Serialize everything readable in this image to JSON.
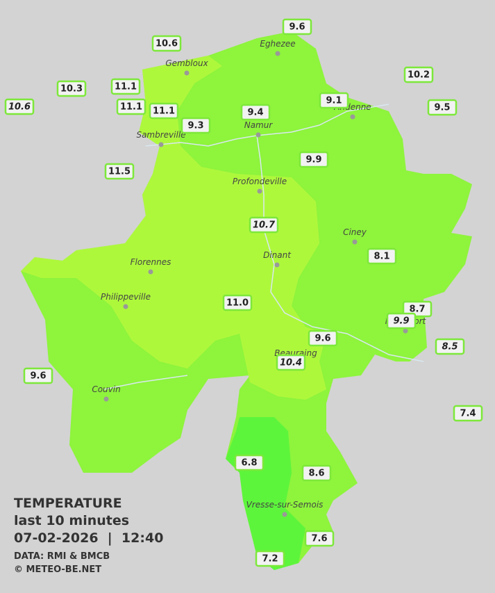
{
  "stations": [
    {
      "label": "9.6",
      "italic": false
    },
    {
      "label": "10.6",
      "italic": false
    },
    {
      "label": "10.2",
      "italic": false
    },
    {
      "label": "10.3",
      "italic": false
    },
    {
      "label": "11.1",
      "italic": false
    },
    {
      "label": "10.6",
      "italic": true
    },
    {
      "label": "11.1",
      "italic": false
    },
    {
      "label": "11.1",
      "italic": false
    },
    {
      "label": "9.4",
      "italic": false
    },
    {
      "label": "9.1",
      "italic": false
    },
    {
      "label": "9.5",
      "italic": false
    },
    {
      "label": "9.3",
      "italic": false
    },
    {
      "label": "9.9",
      "italic": false
    },
    {
      "label": "11.5",
      "italic": false
    },
    {
      "label": "10.7",
      "italic": true
    },
    {
      "label": "8.1",
      "italic": false
    },
    {
      "label": "11.0",
      "italic": false
    },
    {
      "label": "8.7",
      "italic": false
    },
    {
      "label": "9.9",
      "italic": true
    },
    {
      "label": "9.6",
      "italic": false
    },
    {
      "label": "8.5",
      "italic": true
    },
    {
      "label": "10.4",
      "italic": true
    },
    {
      "label": "9.6",
      "italic": false
    },
    {
      "label": "7.4",
      "italic": false
    },
    {
      "label": "6.8",
      "italic": false
    },
    {
      "label": "8.6",
      "italic": false
    },
    {
      "label": "7.6",
      "italic": false
    },
    {
      "label": "7.2",
      "italic": false
    }
  ],
  "cities": [
    "Gembloux",
    "Eghezee",
    "Andenne",
    "Namur",
    "Sambreville",
    "Profondeville",
    "Ciney",
    "Dinant",
    "Florennes",
    "Philippeville",
    "Rochefort",
    "Beauraing",
    "Couvin",
    "Vresse-sur-Semois"
  ],
  "legend": {
    "title": "TEMPERATURE",
    "subtitle": "last 10 minutes",
    "datetime": "07-02-2026  |  12:40",
    "source": "DATA: RMI & BMCB",
    "copyright": "© METEO-BE.NET"
  }
}
